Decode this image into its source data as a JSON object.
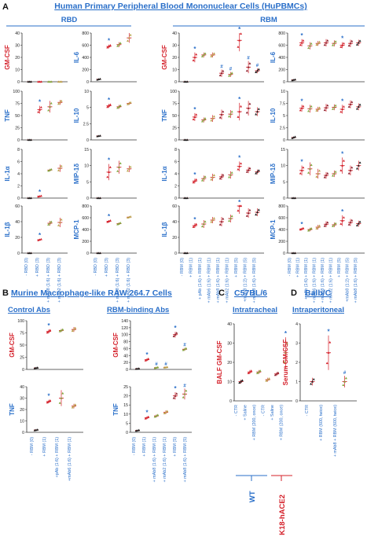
{
  "colors": {
    "title_blue": "#2a6fc9",
    "accent_red": "#d4202a",
    "star_blue": "#2a6fc9",
    "mark_red": "#d4202a",
    "mark_dark": "#1a1a1a",
    "mark_green": "#7fa63a",
    "mark_maroon": "#8a1f2b",
    "mark_olive": "#b8a34a",
    "axis": "#333333"
  },
  "panel_letters": [
    "A",
    "B",
    "C",
    "D"
  ],
  "section_A": {
    "title": "Human Primary Peripheral Blood Mononuclear Cells (HuPBMCs)",
    "groups": [
      "RBD",
      "RBM"
    ]
  },
  "section_B": {
    "title": "Murine Macrophage-like RAW 264.7 Cells",
    "groups": [
      "Control Abs",
      "RBM-binding Abs"
    ]
  },
  "section_C": {
    "title": "C57BL/6",
    "subtitle": "Intratracheal",
    "groups": [
      "WT",
      "K18-hACE2"
    ]
  },
  "section_D": {
    "title": "Balb/C",
    "subtitle": "Intraperitoneal"
  },
  "x_labels": {
    "rbd": [
      "- RBD (0)",
      "+ RBD (3)",
      "+ mAb8 (1:6) + RBD (3)",
      "+ mAb2 (1:6) + RBD (3)"
    ],
    "rbm": [
      "- RBM (0)",
      "+ RBM (1)",
      "+ pAb (1:6) + RBM (1)",
      "+ mAb6 (1:6) + RBM (1)",
      "+ mAb8 (1:6) + RBM (1)",
      "+ mAb2 (1:6) + RBM (1)",
      "+ RBM (5)",
      "+mAb8 (1:2) + RBM (5)",
      "+ mAb8 (1:6) + RBM (5)"
    ],
    "b_control": [
      "- RBM (0)",
      "+ RBM (1)",
      "+pAb (1:6) + RBM (1)",
      "+mAb6 (1:6) + RBM (1)"
    ],
    "b_rbm": [
      "- RBM (0)",
      "+ RBM (1)",
      "+ mAb8 (1:6) + RBM (1)",
      "+ mAb2 (1:6) + RBM (1)",
      "+ RBM (5)",
      "+ mAb8 (1:6) + RBM (5)"
    ],
    "c": [
      "- CTR",
      "+ Saline",
      "+ RBM (200, once)",
      "- CTR",
      "+ Saline",
      "+ RBM (200, once)"
    ],
    "d": [
      "- CTR",
      "+ RBM (600, twice)",
      "+ mAb8 + RBM (600, twice)"
    ]
  },
  "chart_data": [
    {
      "id": "A-RBD-GM-CSF",
      "type": "scatter",
      "ylabel": "GM-CSF",
      "yticks": [
        "40",
        "30",
        "20",
        "10",
        "0"
      ],
      "ylim": [
        0,
        40
      ],
      "means": [
        0,
        0,
        0,
        0
      ],
      "spread": [
        0,
        0,
        0,
        0
      ],
      "stars": [],
      "hashes": []
    },
    {
      "id": "A-RBD-IL-6",
      "type": "scatter",
      "ylabel": "IL-6",
      "yticks": [
        "800",
        "600",
        "400",
        "200",
        "0"
      ],
      "ylim": [
        0,
        800
      ],
      "means": [
        40,
        580,
        610,
        720
      ],
      "spread": [
        10,
        30,
        40,
        80
      ],
      "stars": [
        1
      ],
      "hashes": []
    },
    {
      "id": "A-RBD-TNF",
      "type": "scatter",
      "ylabel": "TNF",
      "yticks": [
        "100",
        "75",
        "50",
        "25",
        "0"
      ],
      "ylim": [
        0,
        100
      ],
      "means": [
        0,
        62,
        68,
        77
      ],
      "spread": [
        0,
        8,
        12,
        5
      ],
      "stars": [
        1
      ],
      "hashes": []
    },
    {
      "id": "A-RBD-IL-10",
      "type": "scatter",
      "ylabel": "IL-10",
      "yticks": [
        "10",
        "5",
        "2.5",
        "0"
      ],
      "ylim": [
        0,
        10
      ],
      "means": [
        0.8,
        7,
        6.8,
        7.5
      ],
      "spread": [
        0.1,
        0.4,
        0.4,
        0.3
      ],
      "stars": [
        1
      ],
      "hashes": []
    },
    {
      "id": "A-RBD-IL-1a",
      "type": "scatter",
      "ylabel": "IL-1α",
      "yticks": [
        "8",
        "6",
        "4",
        "2",
        "0"
      ],
      "ylim": [
        0,
        8
      ],
      "means": [
        0,
        0.3,
        4.6,
        4.9
      ],
      "spread": [
        0,
        0.1,
        0.2,
        0.6
      ],
      "stars": [
        1
      ],
      "hashes": []
    },
    {
      "id": "A-RBD-MIP-1d",
      "type": "scatter",
      "ylabel": "MIP-1δ",
      "yticks": [
        "15",
        "10",
        "5",
        "0"
      ],
      "ylim": [
        0,
        15
      ],
      "means": [
        0,
        8,
        9.5,
        9
      ],
      "spread": [
        0,
        2.5,
        2,
        1
      ],
      "stars": [
        1
      ],
      "hashes": []
    },
    {
      "id": "A-RBD-IL-1b",
      "type": "scatter",
      "ylabel": "IL-1β",
      "yticks": [
        "60",
        "40",
        "20",
        "0"
      ],
      "ylim": [
        0,
        60
      ],
      "means": [
        0,
        17,
        38,
        39
      ],
      "spread": [
        0,
        1,
        3,
        6
      ],
      "stars": [
        1
      ],
      "hashes": []
    },
    {
      "id": "A-RBD-MCP-1",
      "type": "scatter",
      "ylabel": "MCP-1",
      "yticks": [
        "800",
        "600",
        "400",
        "200",
        "0"
      ],
      "ylim": [
        0,
        800
      ],
      "means": [
        0,
        540,
        500,
        610
      ],
      "spread": [
        0,
        20,
        20,
        15
      ],
      "stars": [
        1
      ],
      "hashes": []
    },
    {
      "id": "A-RBM-GM-CSF",
      "type": "scatter",
      "ylabel": "GM-CSF",
      "yticks": [
        "40",
        "30",
        "20",
        "10",
        "0"
      ],
      "ylim": [
        0,
        40
      ],
      "means": [
        0,
        20,
        22,
        22,
        7,
        6,
        34,
        12,
        9
      ],
      "spread": [
        0,
        4,
        2,
        2,
        3,
        2,
        9,
        5,
        2
      ],
      "stars": [
        1,
        6
      ],
      "hashes": [
        4,
        5,
        7,
        8
      ]
    },
    {
      "id": "A-RBM-IL-6",
      "type": "scatter",
      "ylabel": "IL-6",
      "yticks": [
        "800",
        "600",
        "400",
        "200",
        "0"
      ],
      "ylim": [
        0,
        800
      ],
      "means": [
        30,
        640,
        590,
        630,
        640,
        630,
        600,
        630,
        640
      ],
      "spread": [
        10,
        60,
        60,
        40,
        60,
        50,
        50,
        60,
        50
      ],
      "stars": [
        1,
        6
      ],
      "hashes": []
    },
    {
      "id": "A-RBM-TNF",
      "type": "scatter",
      "ylabel": "TNF",
      "yticks": [
        "100",
        "75",
        "50",
        "25",
        "0"
      ],
      "ylim": [
        0,
        100
      ],
      "means": [
        0,
        47,
        41,
        44,
        52,
        53,
        58,
        65,
        58
      ],
      "spread": [
        0,
        8,
        5,
        7,
        10,
        8,
        18,
        15,
        9
      ],
      "stars": [
        1,
        6
      ],
      "hashes": []
    },
    {
      "id": "A-RBM-IL-10",
      "type": "scatter",
      "ylabel": "IL-10",
      "yticks": [
        "10",
        "7.5",
        "5",
        "2.5",
        "0"
      ],
      "ylim": [
        0,
        10
      ],
      "means": [
        0.5,
        6.5,
        6.4,
        6.3,
        6.6,
        6.7,
        6.3,
        7.3,
        6.8
      ],
      "spread": [
        0.2,
        0.7,
        0.8,
        0.5,
        0.8,
        0.6,
        0.9,
        0.8,
        0.7
      ],
      "stars": [
        1,
        6
      ],
      "hashes": []
    },
    {
      "id": "A-RBM-IL-1a",
      "type": "scatter",
      "ylabel": "IL-1α",
      "yticks": [
        "8",
        "6",
        "4",
        "2",
        "0"
      ],
      "ylim": [
        0,
        8
      ],
      "means": [
        0,
        2.8,
        3.2,
        3.4,
        3.5,
        3.8,
        5.2,
        4.6,
        4.3
      ],
      "spread": [
        0,
        0.4,
        0.5,
        0.6,
        0.5,
        0.6,
        0.8,
        0.5,
        0.4
      ],
      "stars": [
        1,
        6
      ],
      "hashes": []
    },
    {
      "id": "A-RBM-MIP-1d",
      "type": "scatter",
      "ylabel": "MIP-1δ",
      "yticks": [
        "15",
        "10",
        "5",
        "0"
      ],
      "ylim": [
        0,
        15
      ],
      "means": [
        0,
        8.5,
        9,
        7.5,
        7,
        7.5,
        10,
        8.5,
        10
      ],
      "spread": [
        0,
        1.5,
        2,
        1.5,
        1,
        1,
        2.5,
        1.5,
        1.5
      ],
      "stars": [
        1,
        6
      ],
      "hashes": []
    },
    {
      "id": "A-RBM-IL-1b",
      "type": "scatter",
      "ylabel": "IL-1β",
      "yticks": [
        "60",
        "40",
        "20",
        "0"
      ],
      "ylim": [
        0,
        60
      ],
      "means": [
        0,
        35,
        37,
        42,
        40,
        44,
        60,
        51,
        52
      ],
      "spread": [
        0,
        3,
        5,
        4,
        6,
        5,
        10,
        6,
        5
      ],
      "stars": [
        1,
        6
      ],
      "hashes": []
    },
    {
      "id": "A-RBM-MCP-1",
      "type": "scatter",
      "ylabel": "MCP-1",
      "yticks": [
        "800",
        "600",
        "400",
        "200",
        "0"
      ],
      "ylim": [
        0,
        800
      ],
      "means": [
        0,
        410,
        400,
        440,
        490,
        480,
        550,
        520,
        500
      ],
      "spread": [
        0,
        20,
        30,
        40,
        50,
        40,
        90,
        60,
        50
      ],
      "stars": [
        1,
        6
      ],
      "hashes": []
    },
    {
      "id": "B-Control-GM-CSF",
      "type": "scatter",
      "ylabel": "GM-CSF",
      "yticks": [
        "100",
        "75",
        "50",
        "25",
        "0"
      ],
      "ylim": [
        0,
        100
      ],
      "means": [
        3,
        78,
        80,
        82
      ],
      "spread": [
        1,
        4,
        3,
        5
      ],
      "stars": [
        1
      ],
      "hashes": []
    },
    {
      "id": "B-RBM-GM-CSF",
      "type": "scatter",
      "ylabel": "GM-CSF",
      "yticks": [
        "140",
        "120",
        "100",
        "80",
        "60",
        "40",
        "20",
        "0"
      ],
      "ylim": [
        0,
        140
      ],
      "means": [
        2,
        28,
        5,
        6,
        100,
        58
      ],
      "spread": [
        1,
        4,
        2,
        1,
        8,
        4
      ],
      "stars": [
        1,
        4
      ],
      "hashes": [
        2,
        3,
        5
      ]
    },
    {
      "id": "B-Control-TNF",
      "type": "scatter",
      "ylabel": "TNF",
      "yticks": [
        "40",
        "30",
        "20",
        "10",
        "0"
      ],
      "ylim": [
        0,
        40
      ],
      "means": [
        2,
        27,
        30,
        23
      ],
      "spread": [
        0.5,
        1.5,
        7,
        2
      ],
      "stars": [
        1
      ],
      "hashes": []
    },
    {
      "id": "B-RBM-TNF",
      "type": "scatter",
      "ylabel": "TNF",
      "yticks": [
        "25",
        "20",
        "15",
        "10",
        "5",
        "0"
      ],
      "ylim": [
        0,
        25
      ],
      "means": [
        1,
        8,
        9,
        11,
        20,
        21
      ],
      "spread": [
        0.3,
        0.8,
        0.8,
        1,
        2,
        3
      ],
      "stars": [
        1,
        4
      ],
      "hashes": [
        5
      ]
    },
    {
      "id": "C-BALF-GM-CSF",
      "type": "scatter",
      "ylabel": "BALF GM-CSF",
      "yticks": [
        "40",
        "30",
        "20",
        "10",
        "0"
      ],
      "ylim": [
        0,
        40
      ],
      "means": [
        10,
        15,
        15,
        11,
        14,
        25
      ],
      "spread": [
        1,
        1,
        1,
        1,
        1,
        8
      ],
      "stars": [
        5
      ],
      "hashes": []
    },
    {
      "id": "D-Serum-GM-CSF",
      "type": "scatter",
      "ylabel": "Serum GM-CSF",
      "yticks": [
        "4",
        "3",
        "2",
        "1",
        "0"
      ],
      "ylim": [
        0,
        4
      ],
      "means": [
        1,
        2.5,
        1
      ],
      "spread": [
        0.2,
        0.9,
        0.3
      ],
      "stars": [
        1
      ],
      "hashes": [
        2
      ]
    }
  ]
}
